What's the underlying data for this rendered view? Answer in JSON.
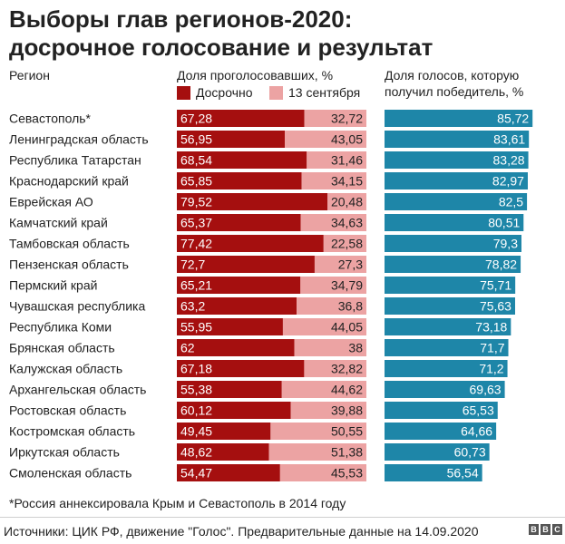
{
  "title_line1": "Выборы глав регионов-2020:",
  "title_line2": "досрочное голосование и результат",
  "headers": {
    "region": "Регион",
    "share_voted": "Доля проголосовавших, %",
    "winner_line1": "Доля голосов, которую",
    "winner_line2": "получил победитель, %"
  },
  "colors": {
    "early": "#a50f0f",
    "sept13": "#eca3a3",
    "winner": "#1e86a8"
  },
  "chart_data": [
    {
      "type": "bar",
      "orientation": "horizontal",
      "stacked": true,
      "title": "Доля проголосовавших, %",
      "legend": [
        "Досрочно",
        "13 сентября"
      ],
      "legend_position": "top",
      "xlim": [
        0,
        100
      ],
      "categories": [
        "Севастополь*",
        "Ленинградская область",
        "Республика Татарстан",
        "Краснодарский край",
        "Еврейская АО",
        "Камчатский край",
        "Тамбовская область",
        "Пензенская область",
        "Пермский край",
        "Чувашская республика",
        "Республика Коми",
        "Брянская область",
        "Калужская область",
        "Архангельская область",
        "Ростовская область",
        "Костромская область",
        "Иркутская область",
        "Смоленская область"
      ],
      "series": [
        {
          "name": "Досрочно",
          "values": [
            67.28,
            56.95,
            68.54,
            65.85,
            79.52,
            65.37,
            77.42,
            72.7,
            65.21,
            63.2,
            55.95,
            62,
            67.18,
            55.38,
            60.12,
            49.45,
            48.62,
            54.47
          ]
        },
        {
          "name": "13 сентября",
          "values": [
            32.72,
            43.05,
            31.46,
            34.15,
            20.48,
            34.63,
            22.58,
            27.3,
            34.79,
            36.8,
            44.05,
            38,
            32.82,
            44.62,
            39.88,
            50.55,
            51.38,
            45.53
          ]
        }
      ],
      "labels_early": [
        "67,28",
        "56,95",
        "68,54",
        "65,85",
        "79,52",
        "65,37",
        "77,42",
        "72,7",
        "65,21",
        "63,2",
        "55,95",
        "62",
        "67,18",
        "55,38",
        "60,12",
        "49,45",
        "48,62",
        "54,47"
      ],
      "labels_sept13": [
        "32,72",
        "43,05",
        "31,46",
        "34,15",
        "20,48",
        "34,63",
        "22,58",
        "27,3",
        "34,79",
        "36,8",
        "44,05",
        "38",
        "32,82",
        "44,62",
        "39,88",
        "50,55",
        "51,38",
        "45,53"
      ]
    },
    {
      "type": "bar",
      "orientation": "horizontal",
      "title": "Доля голосов, которую получил победитель, %",
      "xlim": [
        0,
        100
      ],
      "values": [
        85.72,
        83.61,
        83.28,
        82.97,
        82.5,
        80.51,
        79.3,
        78.82,
        75.71,
        75.63,
        73.18,
        71.7,
        71.2,
        69.63,
        65.53,
        64.66,
        60.73,
        56.54
      ],
      "labels": [
        "85,72",
        "83,61",
        "83,28",
        "82,97",
        "82,5",
        "80,51",
        "79,3",
        "78,82",
        "75,71",
        "75,63",
        "73,18",
        "71,7",
        "71,2",
        "69,63",
        "65,53",
        "64,66",
        "60,73",
        "56,54"
      ]
    }
  ],
  "footnote": "*Россия аннексировала Крым и Севастополь в 2014 году",
  "source": "Источники: ЦИК РФ, движение \"Голос\". Предварительные данные на 14.09.2020",
  "logo_text": "BBC"
}
